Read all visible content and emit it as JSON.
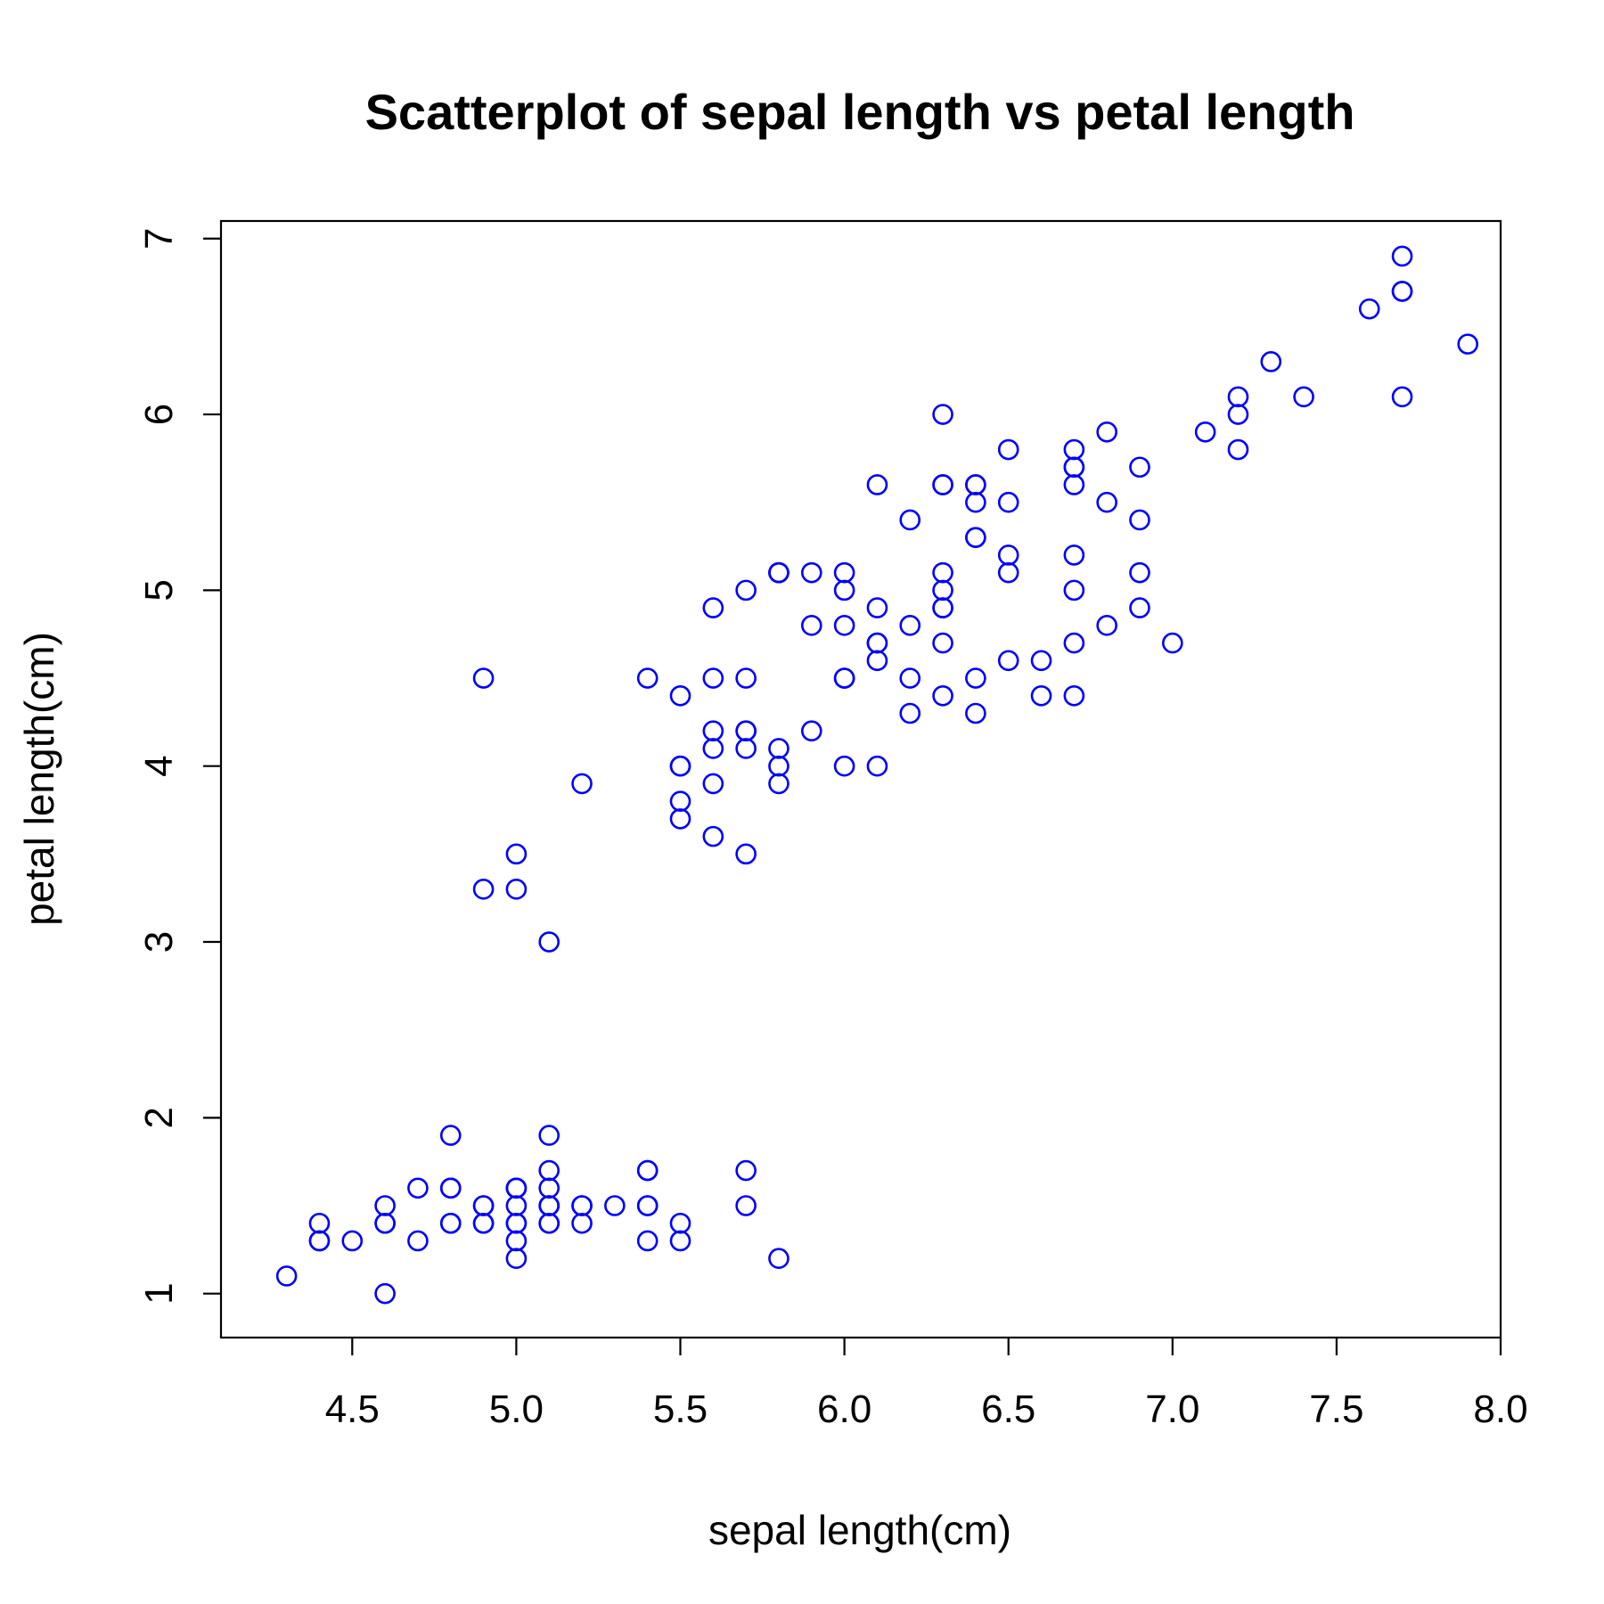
{
  "chart_data": {
    "type": "scatter",
    "title": "Scatterplot of sepal length vs petal length",
    "xlabel": "sepal length(cm)",
    "ylabel": "petal length(cm)",
    "xlim": [
      4.1,
      8.0
    ],
    "ylim": [
      0.75,
      7.1
    ],
    "xticks": [
      4.5,
      5.0,
      5.5,
      6.0,
      6.5,
      7.0,
      7.5,
      8.0
    ],
    "xtick_labels": [
      "4.5",
      "5.0",
      "5.5",
      "6.0",
      "6.5",
      "7.0",
      "7.5",
      "8.0"
    ],
    "yticks": [
      1,
      2,
      3,
      4,
      5,
      6,
      7
    ],
    "ytick_labels": [
      "1",
      "2",
      "3",
      "4",
      "5",
      "6",
      "7"
    ],
    "grid": false,
    "legend": "none",
    "marker": "open-circle",
    "color": "#0000ff",
    "series": [
      {
        "x": [
          5.1,
          4.9,
          4.7,
          4.6,
          5.0,
          5.4,
          4.6,
          5.0,
          4.4,
          4.9,
          5.4,
          4.8,
          4.8,
          4.3,
          5.8,
          5.7,
          5.4,
          5.1,
          5.7,
          5.1,
          5.4,
          5.1,
          4.6,
          5.1,
          4.8,
          5.0,
          5.0,
          5.2,
          5.2,
          4.7,
          4.8,
          5.4,
          5.2,
          5.5,
          4.9,
          5.0,
          5.5,
          4.9,
          4.4,
          5.1,
          5.0,
          4.5,
          4.4,
          5.0,
          5.1,
          4.8,
          5.1,
          4.6,
          5.3,
          5.0,
          7.0,
          6.4,
          6.9,
          5.5,
          6.5,
          5.7,
          6.3,
          4.9,
          6.6,
          5.2,
          5.0,
          5.9,
          6.0,
          6.1,
          5.6,
          6.7,
          5.6,
          5.8,
          6.2,
          5.6,
          5.9,
          6.1,
          6.3,
          6.1,
          6.4,
          6.6,
          6.8,
          6.7,
          6.0,
          5.7,
          5.5,
          5.5,
          5.8,
          6.0,
          5.4,
          6.0,
          6.7,
          6.3,
          5.6,
          5.5,
          5.5,
          6.1,
          5.8,
          5.0,
          5.6,
          5.7,
          5.7,
          6.2,
          5.1,
          5.7,
          6.3,
          5.8,
          7.1,
          6.3,
          6.5,
          7.6,
          4.9,
          7.3,
          6.7,
          7.2,
          6.5,
          6.4,
          6.8,
          5.7,
          5.8,
          6.4,
          6.5,
          7.7,
          7.7,
          6.0,
          6.9,
          5.6,
          7.7,
          6.3,
          6.7,
          7.2,
          6.2,
          6.1,
          6.4,
          7.2,
          7.4,
          7.9,
          6.4,
          6.3,
          6.1,
          7.7,
          6.3,
          6.4,
          6.0,
          6.9,
          6.7,
          6.9,
          5.8,
          6.8,
          6.7,
          6.7,
          6.3,
          6.5,
          6.2,
          5.9
        ],
        "y": [
          1.4,
          1.4,
          1.3,
          1.5,
          1.4,
          1.7,
          1.4,
          1.5,
          1.4,
          1.5,
          1.5,
          1.6,
          1.4,
          1.1,
          1.2,
          1.5,
          1.3,
          1.4,
          1.7,
          1.5,
          1.7,
          1.5,
          1.0,
          1.7,
          1.9,
          1.6,
          1.6,
          1.5,
          1.4,
          1.6,
          1.6,
          1.5,
          1.5,
          1.4,
          1.5,
          1.2,
          1.3,
          1.4,
          1.3,
          1.5,
          1.3,
          1.3,
          1.3,
          1.6,
          1.9,
          1.4,
          1.6,
          1.4,
          1.5,
          1.4,
          4.7,
          4.5,
          4.9,
          4.0,
          4.6,
          4.5,
          4.7,
          3.3,
          4.6,
          3.9,
          3.5,
          4.2,
          4.0,
          4.7,
          3.6,
          4.4,
          4.5,
          4.1,
          4.5,
          3.9,
          4.8,
          4.0,
          4.9,
          4.7,
          4.3,
          4.4,
          4.8,
          5.0,
          4.5,
          3.5,
          3.8,
          3.7,
          3.9,
          5.1,
          4.5,
          4.5,
          4.7,
          4.4,
          4.1,
          4.0,
          4.4,
          4.6,
          4.0,
          3.3,
          4.2,
          4.2,
          4.2,
          4.3,
          3.0,
          4.1,
          6.0,
          5.1,
          5.9,
          5.6,
          5.8,
          6.6,
          4.5,
          6.3,
          5.8,
          6.1,
          5.1,
          5.3,
          5.5,
          5.0,
          5.1,
          5.3,
          5.5,
          6.7,
          6.9,
          5.0,
          5.7,
          4.9,
          6.7,
          4.9,
          5.7,
          6.0,
          4.8,
          4.9,
          5.6,
          5.8,
          6.1,
          6.4,
          5.6,
          5.1,
          5.6,
          6.1,
          5.6,
          5.5,
          4.8,
          5.4,
          5.6,
          5.1,
          5.1,
          5.9,
          5.7,
          5.2,
          5.0,
          5.2,
          5.4,
          5.1
        ]
      }
    ]
  }
}
